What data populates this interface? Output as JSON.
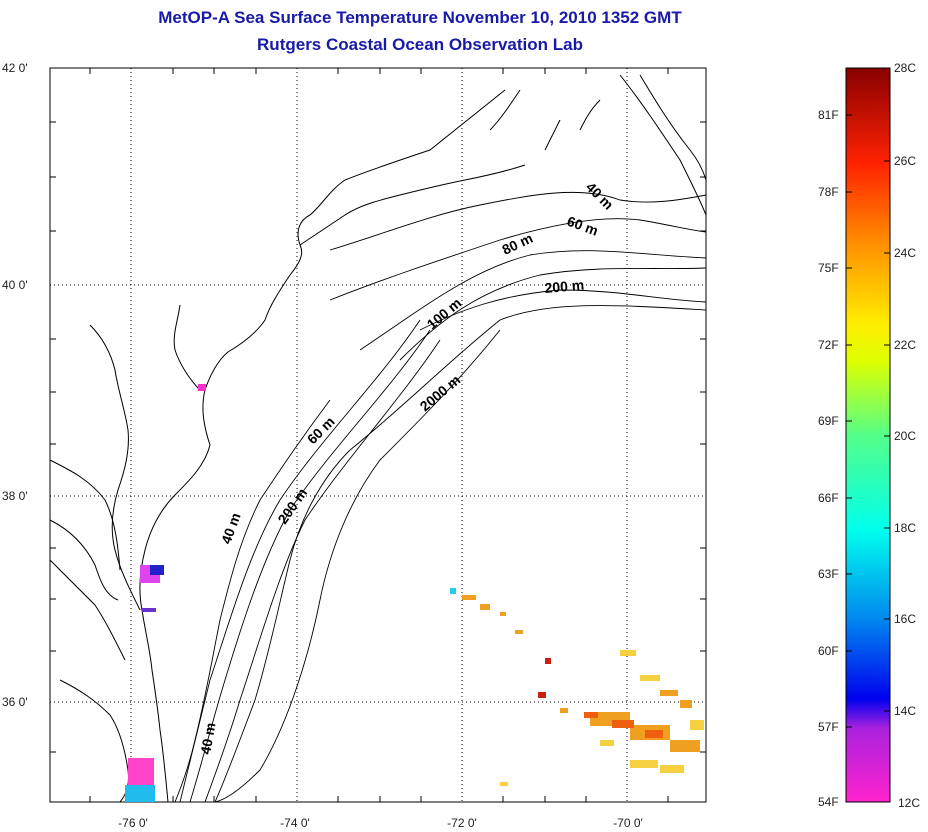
{
  "title_line1": "MetOP-A Sea Surface Temperature November 10, 2010 1352 GMT",
  "title_line2": "Rutgers Coastal Ocean Observation Lab",
  "y_axis_labels": [
    "42 0'",
    "40 0'",
    "38 0'",
    "36 0'"
  ],
  "x_axis_labels": [
    "-76 0'",
    "-74 0'",
    "-72 0'",
    "-70 0'"
  ],
  "contour_labels": [
    "40 m",
    "60 m",
    "80 m",
    "200 m",
    "100 m",
    "2000 m",
    "60 m",
    "200 m",
    "40 m",
    "40 m"
  ],
  "colorbar": {
    "fahrenheit": [
      "81F",
      "78F",
      "75F",
      "72F",
      "69F",
      "66F",
      "63F",
      "60F",
      "57F",
      "54F"
    ],
    "celsius": [
      "28C",
      "26C",
      "24C",
      "22C",
      "20C",
      "18C",
      "16C",
      "14C",
      "12C"
    ],
    "range_c": [
      12,
      28
    ]
  },
  "map_extent": {
    "lon": [
      -77,
      -69
    ],
    "lat": [
      35,
      42
    ]
  },
  "colors": {
    "title": "#1a1aa8",
    "coast": "#000000"
  }
}
